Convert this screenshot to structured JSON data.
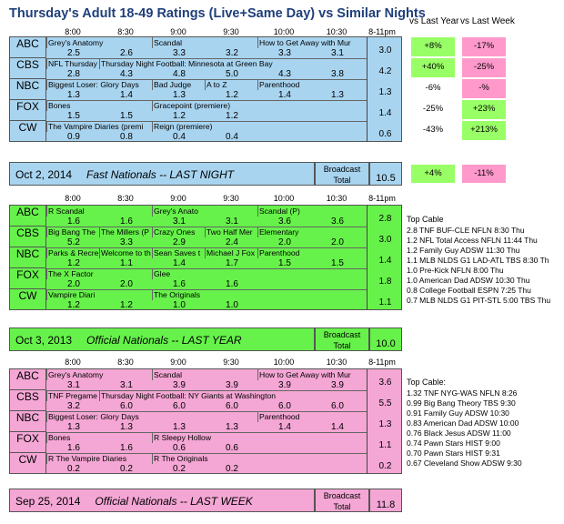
{
  "title": "Thursday's Adult 18-49 Ratings (Live+Same Day) vs Similar Nights",
  "header": {
    "vs_last_year": "vs Last Year",
    "vs_last_week": "vs Last Week",
    "times": [
      "8:00",
      "8:30",
      "9:00",
      "9:30",
      "10:00",
      "10:30",
      "8-11pm"
    ]
  },
  "colors": {
    "blue": "#a8d4f0",
    "green": "#66f24a",
    "pink": "#f4a6d4",
    "yoy_good": "#99ff66",
    "wow_bad": "#ff99cc"
  },
  "section1": {
    "rows": [
      {
        "net": "ABC",
        "programs": [
          "Grey's Anatomy",
          "Scandal",
          "How to Get Away with Mur"
        ],
        "ratings": [
          "2.5",
          "2.6",
          "3.3",
          "3.2",
          "3.3",
          "3.1"
        ],
        "total": "3.0",
        "vs_year": "+8%",
        "vs_week": "-17%"
      },
      {
        "net": "CBS",
        "programs": [
          "NFL Thursday",
          "Thursday Night Football: Minnesota at Green Bay"
        ],
        "ratings": [
          "2.8",
          "4.3",
          "4.8",
          "5.0",
          "4.3",
          "3.8"
        ],
        "total": "4.2",
        "vs_year": "+40%",
        "vs_week": "-25%"
      },
      {
        "net": "NBC",
        "programs": [
          "Biggest Loser: Glory Days",
          "Bad Judge",
          "A to Z",
          "Parenthood"
        ],
        "ratings": [
          "1.3",
          "1.4",
          "1.3",
          "1.2",
          "1.4",
          "1.3"
        ],
        "total": "1.3",
        "vs_year": "-6%",
        "vs_week": "-%"
      },
      {
        "net": "FOX",
        "programs": [
          "Bones",
          "Gracepoint (premiere)"
        ],
        "ratings": [
          "1.5",
          "1.5",
          "1.2",
          "1.2"
        ],
        "total": "1.4",
        "vs_year": "-25%",
        "vs_week": "+23%"
      },
      {
        "net": "CW",
        "programs": [
          "The Vampire Diaries (premi",
          "Reign (premiere)"
        ],
        "ratings": [
          "0.9",
          "0.8",
          "0.4",
          "0.4"
        ],
        "total": "0.6",
        "vs_year": "-43%",
        "vs_week": "+213%"
      }
    ],
    "footer_date": "Oct 2, 2014",
    "footer_label": "Fast Nationals -- LAST NIGHT",
    "broadcast": "Broadcast",
    "total_label": "Total",
    "total_value": "10.5",
    "total_vs_year": "+4%",
    "total_vs_week": "-11%"
  },
  "section2": {
    "rows": [
      {
        "net": "ABC",
        "programs": [
          "R Scandal",
          "Grey's Anato",
          "Scandal (P)"
        ],
        "ratings": [
          "1.6",
          "1.6",
          "3.1",
          "3.1",
          "3.6",
          "3.6"
        ],
        "total": "2.8"
      },
      {
        "net": "CBS",
        "programs": [
          "Big Bang The",
          "The Millers (P",
          "Crazy Ones",
          "Two Half Mer",
          "Elementary"
        ],
        "ratings": [
          "5.2",
          "3.3",
          "2.9",
          "2.4",
          "2.0",
          "2.0"
        ],
        "total": "3.0"
      },
      {
        "net": "NBC",
        "programs": [
          "Parks & Recre",
          "Welcome to th",
          "Sean Saves t",
          "Michael J Fox",
          "Parenthood"
        ],
        "ratings": [
          "1.2",
          "1.1",
          "1.4",
          "1.7",
          "1.5",
          "1.5"
        ],
        "total": "1.4"
      },
      {
        "net": "FOX",
        "programs": [
          "The X Factor",
          "Glee"
        ],
        "ratings": [
          "2.0",
          "2.0",
          "1.6",
          "1.6"
        ],
        "total": "1.8"
      },
      {
        "net": "CW",
        "programs": [
          "Vampire Diari",
          "The Originals"
        ],
        "ratings": [
          "1.2",
          "1.2",
          "1.0",
          "1.0"
        ],
        "total": "1.1"
      }
    ],
    "footer_date": "Oct 3, 2013",
    "footer_label": "Official Nationals -- LAST YEAR",
    "broadcast": "Broadcast",
    "total_label": "Total",
    "total_value": "10.0"
  },
  "section3": {
    "rows": [
      {
        "net": "ABC",
        "programs": [
          "Grey's Anatomy",
          "Scandal",
          "How to Get Away with Mur"
        ],
        "ratings": [
          "3.1",
          "3.1",
          "3.9",
          "3.9",
          "3.9",
          "3.9"
        ],
        "total": "3.6"
      },
      {
        "net": "CBS",
        "programs": [
          "TNF Pregame",
          "Thursday Night Football: NY Giants at Washington"
        ],
        "ratings": [
          "3.2",
          "6.0",
          "6.0",
          "6.0",
          "6.0",
          "6.0"
        ],
        "total": "5.5"
      },
      {
        "net": "NBC",
        "programs": [
          "Biggest Loser: Glory Days",
          "Parenthood"
        ],
        "ratings": [
          "1.3",
          "1.3",
          "1.3",
          "1.3",
          "1.4",
          "1.4"
        ],
        "total": "1.3"
      },
      {
        "net": "FOX",
        "programs": [
          "Bones",
          "R Sleepy Hollow"
        ],
        "ratings": [
          "1.6",
          "1.6",
          "0.6",
          "0.6"
        ],
        "total": "1.1"
      },
      {
        "net": "CW",
        "programs": [
          "R The Vampire Diaries",
          "R The Originals"
        ],
        "ratings": [
          "0.2",
          "0.2",
          "0.2",
          "0.2"
        ],
        "total": "0.2"
      }
    ],
    "footer_date": "Sep 25, 2014",
    "footer_label": "Official Nationals -- LAST WEEK",
    "broadcast": "Broadcast",
    "total_label": "Total",
    "total_value": "11.8"
  },
  "top_cable_1": {
    "heading": "Top Cable",
    "items": [
      "2.8 TNF BUF-CLE NFLN 8:30 Thu",
      "1.2 NFL Total Access NFLN 11:44 Thu",
      "1.2 Family Guy ADSW 11:30 Thu",
      "1.1 MLB NLDS G1 LAD-ATL TBS 8:30 Th",
      "1.0 Pre-Kick NFLN 8:00 Thu",
      "1.0 American Dad ADSW 10:30 Thu",
      "0.8 College Football ESPN 7:25 Thu",
      "0.7 MLB NLDS G1 PIT-STL 5:00 TBS Thu"
    ]
  },
  "top_cable_2": {
    "heading": "Top Cable:",
    "items": [
      "1.32 TNF NYG-WAS NFLN 8:26",
      "0.99 Big Bang Theory TBS 9:30",
      "0.91 Family Guy ADSW 10:30",
      "0.83 American Dad ADSW 10:00",
      "0.76 Black Jesus ADSW 11:00",
      "0.74 Pawn Stars HIST 9:00",
      "0.70 Pawn Stars HIST 9:31",
      "0.67 Cleveland Show ADSW 9:30"
    ]
  }
}
